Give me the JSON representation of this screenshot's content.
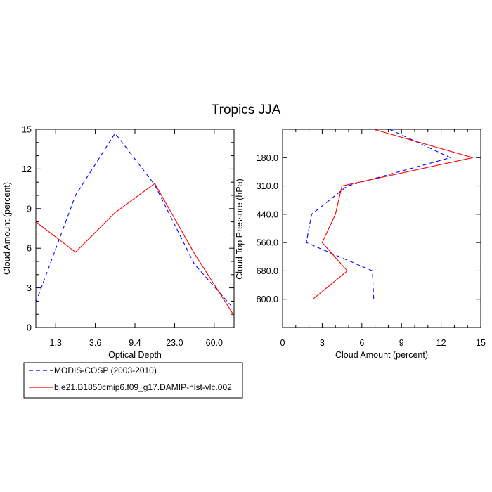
{
  "title": "Tropics JJA",
  "legend": [
    {
      "label": "MODIS-COSP (2003-2010)",
      "color": "#0000ff",
      "dash": true
    },
    {
      "label": "b.e21.B1850cmip6.f09_g17.DAMIP-hist-vlc.002",
      "color": "#ff0000",
      "dash": false
    }
  ],
  "chart_data": [
    {
      "type": "line",
      "xlabel": "Optical Depth",
      "ylabel": "Cloud Amount (percent)",
      "x_tick_labels": [
        "1.3",
        "3.6",
        "9.4",
        "23.0",
        "60.0"
      ],
      "y_ticks": [
        0,
        3,
        6,
        9,
        12,
        15
      ],
      "ylim": [
        0,
        15
      ],
      "x_bins": 6,
      "series": [
        {
          "name": "MODIS-COSP (2003-2010)",
          "values": [
            1.9,
            10.0,
            14.7,
            10.8,
            4.8,
            1.4
          ]
        },
        {
          "name": "b.e21.B1850cmip6.f09_g17.DAMIP-hist-vlc.002",
          "values": [
            8.0,
            5.7,
            8.7,
            10.9,
            5.6,
            0.9
          ]
        }
      ]
    },
    {
      "type": "line",
      "xlabel": "Cloud Amount (percent)",
      "ylabel": "Cloud Top Pressure (hPa)",
      "x_ticks": [
        0,
        3,
        6,
        9,
        12,
        15
      ],
      "xlim": [
        0,
        15
      ],
      "y_tick_labels": [
        "180.0",
        "310.0",
        "440.0",
        "560.0",
        "680.0",
        "800.0"
      ],
      "y_bins": 7,
      "series": [
        {
          "name": "MODIS-COSP (2003-2010)",
          "values": [
            8.1,
            12.7,
            4.9,
            2.2,
            1.8,
            6.8,
            6.9
          ]
        },
        {
          "name": "b.e21.B1850cmip6.f09_g17.DAMIP-hist-vlc.002",
          "values": [
            6.9,
            14.4,
            4.5,
            4.0,
            3.0,
            4.9,
            2.3
          ]
        }
      ]
    }
  ]
}
